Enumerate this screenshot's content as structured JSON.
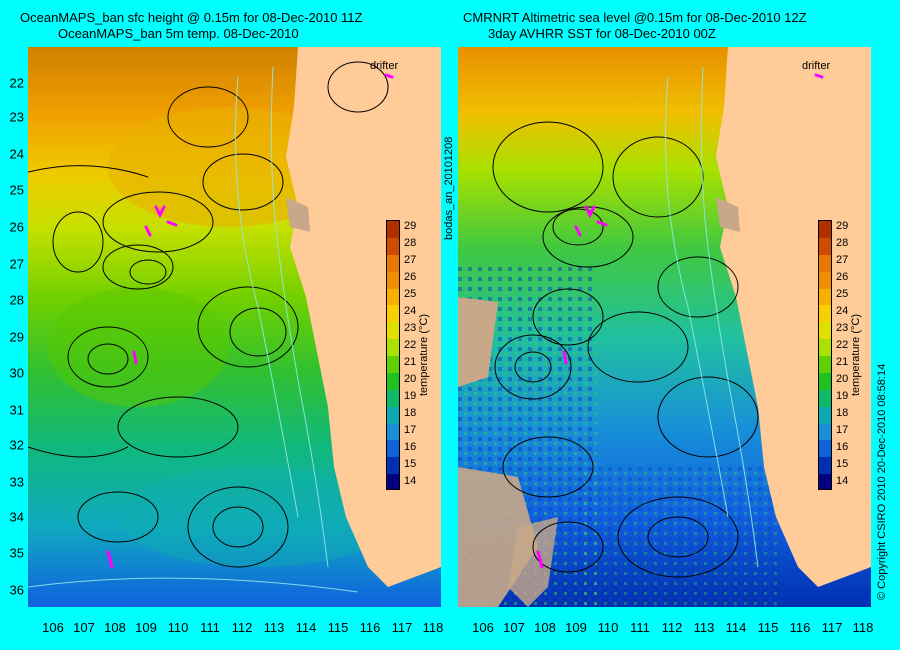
{
  "left_panel": {
    "title_line1": "OceanMAPS_ban sfc height @ 0.15m for 08-Dec-2010 11Z",
    "title_line2": "OceanMAPS_ban 5m temp. 08-Dec-2010",
    "drifter_label": "drifter"
  },
  "right_panel": {
    "title_line1": "CMRNRT Altimetric sea level  @0.15m  for 08-Dec-2010 12Z",
    "title_line2": "3day AVHRR SST for 08-Dec-2010 00Z",
    "drifter_label": "drifter"
  },
  "side_label_middle": "bodas_an_20101208",
  "side_label_right": "© Copyright CSIRO 2010  20-Dec-2010 08:58:14",
  "y_ticks": [
    "22",
    "23",
    "24",
    "25",
    "26",
    "27",
    "28",
    "29",
    "30",
    "31",
    "32",
    "33",
    "34",
    "35",
    "36"
  ],
  "x_ticks": [
    "106",
    "107",
    "108",
    "109",
    "110",
    "111",
    "112",
    "113",
    "114",
    "115",
    "116",
    "117",
    "118"
  ],
  "colorbar": {
    "label": "temperature (°C)",
    "ticks": [
      "29",
      "28",
      "27",
      "26",
      "25",
      "24",
      "23",
      "22",
      "21",
      "20",
      "19",
      "18",
      "17",
      "16",
      "15",
      "14"
    ],
    "colors": [
      "#b03000",
      "#d04a00",
      "#e87800",
      "#f09000",
      "#f8b000",
      "#f8d000",
      "#e0e000",
      "#a8e000",
      "#60d000",
      "#20c020",
      "#10b868",
      "#10a8b0",
      "#1890d8",
      "#1060d8",
      "#0030b0",
      "#000080"
    ]
  },
  "colors": {
    "land": "#ffcc99",
    "land_alt": "#c8a888",
    "background": "#00ffff",
    "drifter": "#ff00ff"
  }
}
